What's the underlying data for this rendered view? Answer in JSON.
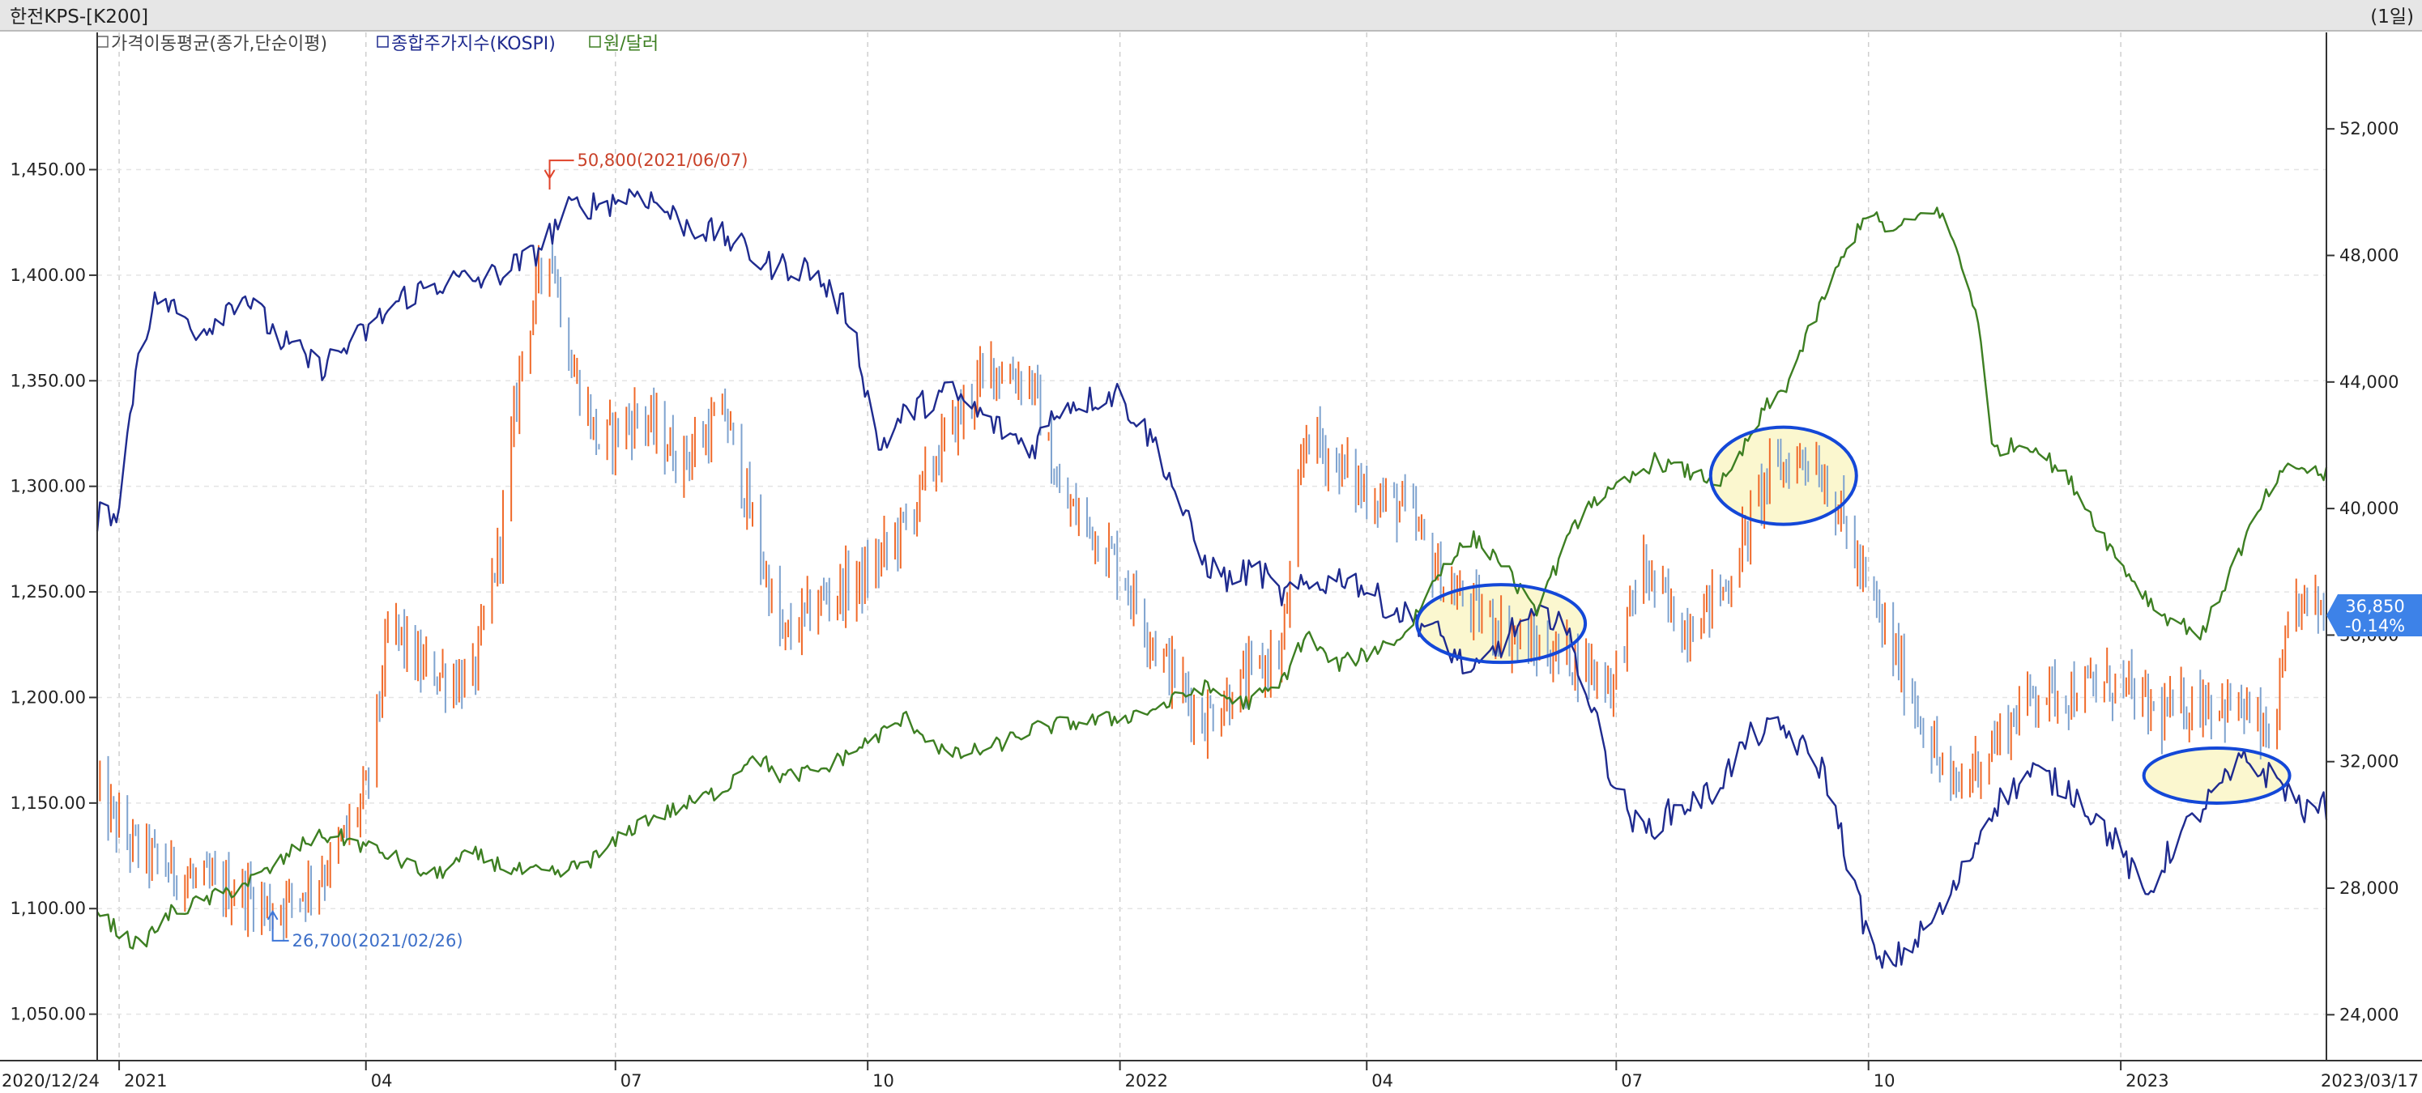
{
  "header": {
    "title": "한전KPS-[K200]",
    "period": "(1일)"
  },
  "legend": [
    {
      "label": "가격이동평균(종가,단순이평)",
      "color": "#444444"
    },
    {
      "label": "종합주가지수(KOSPI)",
      "color": "#1f2b8f"
    },
    {
      "label": "원/달러",
      "color": "#3d7f22"
    }
  ],
  "annotations": {
    "high": "50,800(2021/06/07)",
    "low": "26,700(2021/02/26)"
  },
  "price_tag": {
    "value": "36,850",
    "change": "-0.14%"
  },
  "colors": {
    "up": "#f06a2a",
    "down": "#7fa3cf",
    "kospi": "#1f2b8f",
    "usd": "#3d7f22",
    "ellipse": "#1448d8",
    "ellipse_fill": "#fbf7cf",
    "tag": "#3d82e8"
  },
  "chart_data": {
    "type": "line",
    "x_start": "2020/12/24",
    "x_end": "2023/03/17",
    "x_ticks": [
      "2020/12/24",
      "2021",
      "04",
      "07",
      "10",
      "2022",
      "04",
      "07",
      "10",
      "2023",
      "2023/03/17"
    ],
    "left_axis": {
      "name": "원/달러",
      "ticks": [
        "1,450.00",
        "1,400.00",
        "1,350.00",
        "1,300.00",
        "1,250.00",
        "1,200.00",
        "1,150.00",
        "1,100.00",
        "1,050.00"
      ],
      "range": [
        1028,
        1515
      ]
    },
    "right_axis": {
      "name": "가격 (한전KPS)",
      "ticks": [
        "52,000",
        "48,000",
        "44,000",
        "40,000",
        "36,000",
        "32,000",
        "28,000",
        "24,000"
      ],
      "range": [
        22550,
        55050
      ]
    },
    "series": [
      {
        "name": "한전KPS",
        "axis": "right",
        "points": [
          [
            "2020-12-24",
            31000
          ],
          [
            "2021-01-04",
            29500
          ],
          [
            "2021-01-15",
            28800
          ],
          [
            "2021-02-01",
            28100
          ],
          [
            "2021-02-15",
            27900
          ],
          [
            "2021-02-26",
            27300
          ],
          [
            "2021-03-10",
            28000
          ],
          [
            "2021-03-20",
            28900
          ],
          [
            "2021-04-01",
            31000
          ],
          [
            "2021-04-10",
            36500
          ],
          [
            "2021-04-20",
            35000
          ],
          [
            "2021-05-01",
            34700
          ],
          [
            "2021-05-10",
            34500
          ],
          [
            "2021-05-20",
            39000
          ],
          [
            "2021-05-28",
            45000
          ],
          [
            "2021-06-07",
            48500
          ],
          [
            "2021-06-15",
            44500
          ],
          [
            "2021-06-25",
            42000
          ],
          [
            "2021-07-10",
            43000
          ],
          [
            "2021-07-25",
            41500
          ],
          [
            "2021-08-10",
            43000
          ],
          [
            "2021-08-20",
            39500
          ],
          [
            "2021-08-31",
            35800
          ],
          [
            "2021-09-15",
            37200
          ],
          [
            "2021-09-30",
            37800
          ],
          [
            "2021-10-15",
            39500
          ],
          [
            "2021-10-31",
            42500
          ],
          [
            "2021-11-15",
            44500
          ],
          [
            "2021-11-30",
            44000
          ],
          [
            "2021-12-10",
            40300
          ],
          [
            "2021-12-20",
            39500
          ],
          [
            "2021-12-31",
            38300
          ],
          [
            "2022-01-15",
            35500
          ],
          [
            "2022-01-31",
            33300
          ],
          [
            "2022-02-15",
            34500
          ],
          [
            "2022-03-01",
            35500
          ],
          [
            "2022-03-10",
            42500
          ],
          [
            "2022-03-20",
            41500
          ],
          [
            "2022-04-01",
            40500
          ],
          [
            "2022-04-15",
            40000
          ],
          [
            "2022-04-30",
            37500
          ],
          [
            "2022-05-15",
            36500
          ],
          [
            "2022-05-31",
            35600
          ],
          [
            "2022-06-15",
            35300
          ],
          [
            "2022-06-30",
            34500
          ],
          [
            "2022-07-10",
            38200
          ],
          [
            "2022-07-25",
            36200
          ],
          [
            "2022-08-10",
            37500
          ],
          [
            "2022-08-25",
            41000
          ],
          [
            "2022-09-10",
            41800
          ],
          [
            "2022-09-20",
            40000
          ],
          [
            "2022-09-30",
            37500
          ],
          [
            "2022-10-15",
            34500
          ],
          [
            "2022-10-31",
            31000
          ],
          [
            "2022-11-15",
            32500
          ],
          [
            "2022-11-30",
            34200
          ],
          [
            "2022-12-15",
            34200
          ],
          [
            "2022-12-31",
            34500
          ],
          [
            "2023-01-15",
            33400
          ],
          [
            "2023-01-31",
            34000
          ],
          [
            "2023-02-15",
            33600
          ],
          [
            "2023-02-25",
            32500
          ],
          [
            "2023-03-05",
            37000
          ],
          [
            "2023-03-17",
            36850
          ]
        ]
      },
      {
        "name": "종합주가지수(KOSPI)",
        "axis": "left",
        "points": [
          [
            "2020-12-24",
            1285
          ],
          [
            "2021-01-01",
            1290
          ],
          [
            "2021-01-08",
            1365
          ],
          [
            "2021-01-15",
            1390
          ],
          [
            "2021-01-31",
            1373
          ],
          [
            "2021-02-15",
            1392
          ],
          [
            "2021-02-28",
            1370
          ],
          [
            "2021-03-15",
            1356
          ],
          [
            "2021-03-31",
            1372
          ],
          [
            "2021-04-15",
            1390
          ],
          [
            "2021-04-30",
            1397
          ],
          [
            "2021-05-15",
            1398
          ],
          [
            "2021-05-31",
            1408
          ],
          [
            "2021-06-15",
            1432
          ],
          [
            "2021-06-30",
            1435
          ],
          [
            "2021-07-10",
            1440
          ],
          [
            "2021-07-25",
            1425
          ],
          [
            "2021-08-10",
            1418
          ],
          [
            "2021-08-25",
            1405
          ],
          [
            "2021-09-10",
            1403
          ],
          [
            "2021-09-25",
            1380
          ],
          [
            "2021-10-05",
            1318
          ],
          [
            "2021-10-15",
            1335
          ],
          [
            "2021-10-31",
            1345
          ],
          [
            "2021-11-15",
            1330
          ],
          [
            "2021-11-30",
            1318
          ],
          [
            "2021-12-10",
            1338
          ],
          [
            "2021-12-31",
            1344
          ],
          [
            "2022-01-15",
            1318
          ],
          [
            "2022-01-31",
            1265
          ],
          [
            "2022-02-10",
            1255
          ],
          [
            "2022-02-20",
            1262
          ],
          [
            "2022-02-28",
            1248
          ],
          [
            "2022-03-10",
            1252
          ],
          [
            "2022-03-25",
            1258
          ],
          [
            "2022-04-10",
            1242
          ],
          [
            "2022-04-25",
            1233
          ],
          [
            "2022-05-10",
            1210
          ],
          [
            "2022-05-25",
            1233
          ],
          [
            "2022-06-10",
            1240
          ],
          [
            "2022-06-20",
            1205
          ],
          [
            "2022-06-30",
            1160
          ],
          [
            "2022-07-10",
            1135
          ],
          [
            "2022-07-20",
            1145
          ],
          [
            "2022-08-05",
            1155
          ],
          [
            "2022-08-20",
            1183
          ],
          [
            "2022-08-31",
            1185
          ],
          [
            "2022-09-15",
            1165
          ],
          [
            "2022-09-30",
            1090
          ],
          [
            "2022-10-05",
            1072
          ],
          [
            "2022-10-15",
            1080
          ],
          [
            "2022-10-31",
            1105
          ],
          [
            "2022-11-15",
            1148
          ],
          [
            "2022-11-30",
            1165
          ],
          [
            "2022-12-15",
            1155
          ],
          [
            "2022-12-31",
            1130
          ],
          [
            "2023-01-10",
            1105
          ],
          [
            "2023-01-20",
            1130
          ],
          [
            "2023-01-31",
            1148
          ],
          [
            "2023-02-15",
            1170
          ],
          [
            "2023-02-28",
            1160
          ],
          [
            "2023-03-10",
            1145
          ],
          [
            "2023-03-17",
            1149
          ]
        ]
      },
      {
        "name": "원/달러",
        "axis": "left",
        "points": [
          [
            "2020-12-24",
            1100
          ],
          [
            "2020-12-31",
            1090
          ],
          [
            "2021-01-08",
            1082
          ],
          [
            "2021-01-20",
            1098
          ],
          [
            "2021-02-10",
            1108
          ],
          [
            "2021-02-25",
            1118
          ],
          [
            "2021-03-10",
            1132
          ],
          [
            "2021-03-20",
            1135
          ],
          [
            "2021-04-10",
            1125
          ],
          [
            "2021-04-25",
            1115
          ],
          [
            "2021-05-10",
            1126
          ],
          [
            "2021-05-25",
            1118
          ],
          [
            "2021-06-10",
            1116
          ],
          [
            "2021-06-25",
            1125
          ],
          [
            "2021-07-10",
            1141
          ],
          [
            "2021-07-25",
            1148
          ],
          [
            "2021-08-10",
            1157
          ],
          [
            "2021-08-20",
            1174
          ],
          [
            "2021-08-31",
            1162
          ],
          [
            "2021-09-15",
            1166
          ],
          [
            "2021-09-30",
            1178
          ],
          [
            "2021-10-15",
            1190
          ],
          [
            "2021-10-31",
            1172
          ],
          [
            "2021-11-15",
            1176
          ],
          [
            "2021-11-30",
            1185
          ],
          [
            "2021-12-15",
            1188
          ],
          [
            "2021-12-31",
            1190
          ],
          [
            "2022-01-15",
            1195
          ],
          [
            "2022-01-31",
            1205
          ],
          [
            "2022-02-15",
            1197
          ],
          [
            "2022-02-28",
            1205
          ],
          [
            "2022-03-10",
            1230
          ],
          [
            "2022-03-20",
            1215
          ],
          [
            "2022-03-31",
            1220
          ],
          [
            "2022-04-15",
            1230
          ],
          [
            "2022-04-30",
            1265
          ],
          [
            "2022-05-10",
            1275
          ],
          [
            "2022-05-20",
            1265
          ],
          [
            "2022-06-01",
            1240
          ],
          [
            "2022-06-20",
            1292
          ],
          [
            "2022-06-30",
            1297
          ],
          [
            "2022-07-15",
            1312
          ],
          [
            "2022-07-31",
            1305
          ],
          [
            "2022-08-10",
            1302
          ],
          [
            "2022-08-25",
            1338
          ],
          [
            "2022-08-31",
            1345
          ],
          [
            "2022-09-15",
            1390
          ],
          [
            "2022-09-30",
            1430
          ],
          [
            "2022-10-10",
            1420
          ],
          [
            "2022-10-25",
            1432
          ],
          [
            "2022-10-31",
            1420
          ],
          [
            "2022-11-10",
            1380
          ],
          [
            "2022-11-15",
            1318
          ],
          [
            "2022-11-30",
            1320
          ],
          [
            "2022-12-15",
            1300
          ],
          [
            "2022-12-31",
            1265
          ],
          [
            "2023-01-15",
            1240
          ],
          [
            "2023-01-31",
            1230
          ],
          [
            "2023-02-10",
            1260
          ],
          [
            "2023-02-25",
            1300
          ],
          [
            "2023-03-05",
            1310
          ],
          [
            "2023-03-17",
            1305
          ]
        ]
      }
    ],
    "high": {
      "value": 50800,
      "date": "2021-06-07"
    },
    "low": {
      "value": 26700,
      "date": "2021-02-26"
    },
    "highlights": [
      {
        "date": "2022-05-20",
        "value": 1235,
        "axis": "left"
      },
      {
        "date": "2022-08-31",
        "value": 1305,
        "axis": "left"
      },
      {
        "date": "2023-02-05",
        "value": 1163,
        "axis": "left"
      }
    ]
  }
}
